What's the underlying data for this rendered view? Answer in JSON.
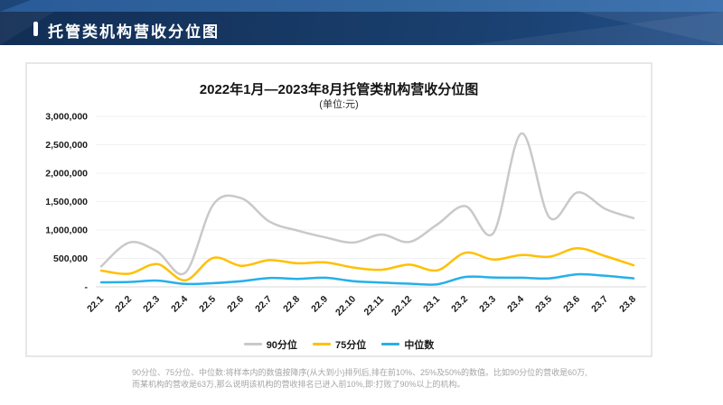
{
  "banner": {
    "title": "托管类机构营收分位图"
  },
  "chart_data": {
    "type": "line",
    "title": "2022年1月—2023年8月托管类机构营收分位图",
    "subtitle": "(单位:元)",
    "categories": [
      "22.1",
      "22.2",
      "22.3",
      "22.4",
      "22.5",
      "22.6",
      "22.7",
      "22.8",
      "22.9",
      "22.10",
      "22.11",
      "22.12",
      "23.1",
      "23.2",
      "23.3",
      "23.4",
      "23.5",
      "23.6",
      "23.7",
      "23.8"
    ],
    "series": [
      {
        "name": "90分位",
        "color": "#c9c9c9",
        "values": [
          360000,
          780000,
          620000,
          250000,
          1450000,
          1560000,
          1150000,
          990000,
          870000,
          780000,
          920000,
          790000,
          1100000,
          1420000,
          950000,
          2700000,
          1220000,
          1660000,
          1370000,
          1210000
        ]
      },
      {
        "name": "75分位",
        "color": "#ffc000",
        "values": [
          285000,
          230000,
          400000,
          115000,
          510000,
          370000,
          470000,
          415000,
          430000,
          340000,
          300000,
          390000,
          290000,
          600000,
          480000,
          560000,
          530000,
          680000,
          540000,
          380000
        ]
      },
      {
        "name": "中位数",
        "color": "#25b0ea",
        "values": [
          80000,
          85000,
          110000,
          50000,
          65000,
          100000,
          155000,
          140000,
          160000,
          100000,
          75000,
          55000,
          45000,
          175000,
          165000,
          160000,
          150000,
          220000,
          195000,
          150000
        ]
      }
    ],
    "ylim": [
      0,
      3000000
    ],
    "ytick_step": 500000,
    "ytick_labels": [
      "-",
      "500,000",
      "1,000,000",
      "1,500,000",
      "2,000,000",
      "2,500,000",
      "3,000,000"
    ],
    "grid": true,
    "smooth": true,
    "legend_position": "bottom"
  },
  "colors": {
    "banner_dark": "#173a66",
    "banner_strip": "#33679f",
    "card_border": "#e7e7e7",
    "gridline": "#f1f1f1",
    "axis_line": "#d9d9d9",
    "footnote_text": "#a5a5a5"
  },
  "footnote": {
    "line1": "90分位、75分位、中位数:将样本内的数值按降序(从大到小)排列后,排在前10%、25%及50%的数值。比如90分位的营收是60万,",
    "line2": "而某机构的营收是63万,那么说明该机构的营收排名已进入前10%,即:打败了90%以上的机构。"
  }
}
